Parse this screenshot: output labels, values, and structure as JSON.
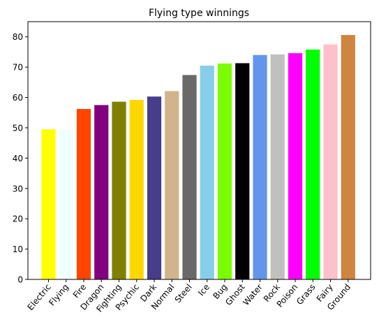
{
  "chart_data": {
    "type": "bar",
    "title": "Flying type winnings",
    "xlabel": "",
    "ylabel": "",
    "ylim": [
      0,
      85
    ],
    "yticks": [
      0,
      10,
      20,
      30,
      40,
      50,
      60,
      70,
      80
    ],
    "ytick_labels": [
      "0",
      "10",
      "20",
      "30",
      "40",
      "50",
      "60",
      "70",
      "80"
    ],
    "grid": false,
    "categories": [
      "Electric",
      "Flying",
      "Fire",
      "Dragon",
      "Fighting",
      "Psychic",
      "Dark",
      "Normal",
      "Steel",
      "Ice",
      "Bug",
      "Ghost",
      "Water",
      "Rock",
      "Poison",
      "Grass",
      "Fairy",
      "Ground"
    ],
    "values": [
      49.5,
      49.5,
      56.2,
      57.5,
      58.6,
      59.2,
      60.3,
      62.1,
      67.4,
      70.5,
      71.2,
      71.3,
      74.0,
      74.2,
      74.6,
      75.8,
      77.5,
      80.6
    ],
    "colors": [
      "#FFFF00",
      "#F0FFFF",
      "#FF4500",
      "#800080",
      "#808000",
      "#FFD700",
      "#483D8B",
      "#D2B48C",
      "#696969",
      "#87CEEB",
      "#7CFC00",
      "#000000",
      "#6495ED",
      "#C0C0C0",
      "#FF00FF",
      "#00FF00",
      "#FFC0CB",
      "#CD853F"
    ]
  }
}
